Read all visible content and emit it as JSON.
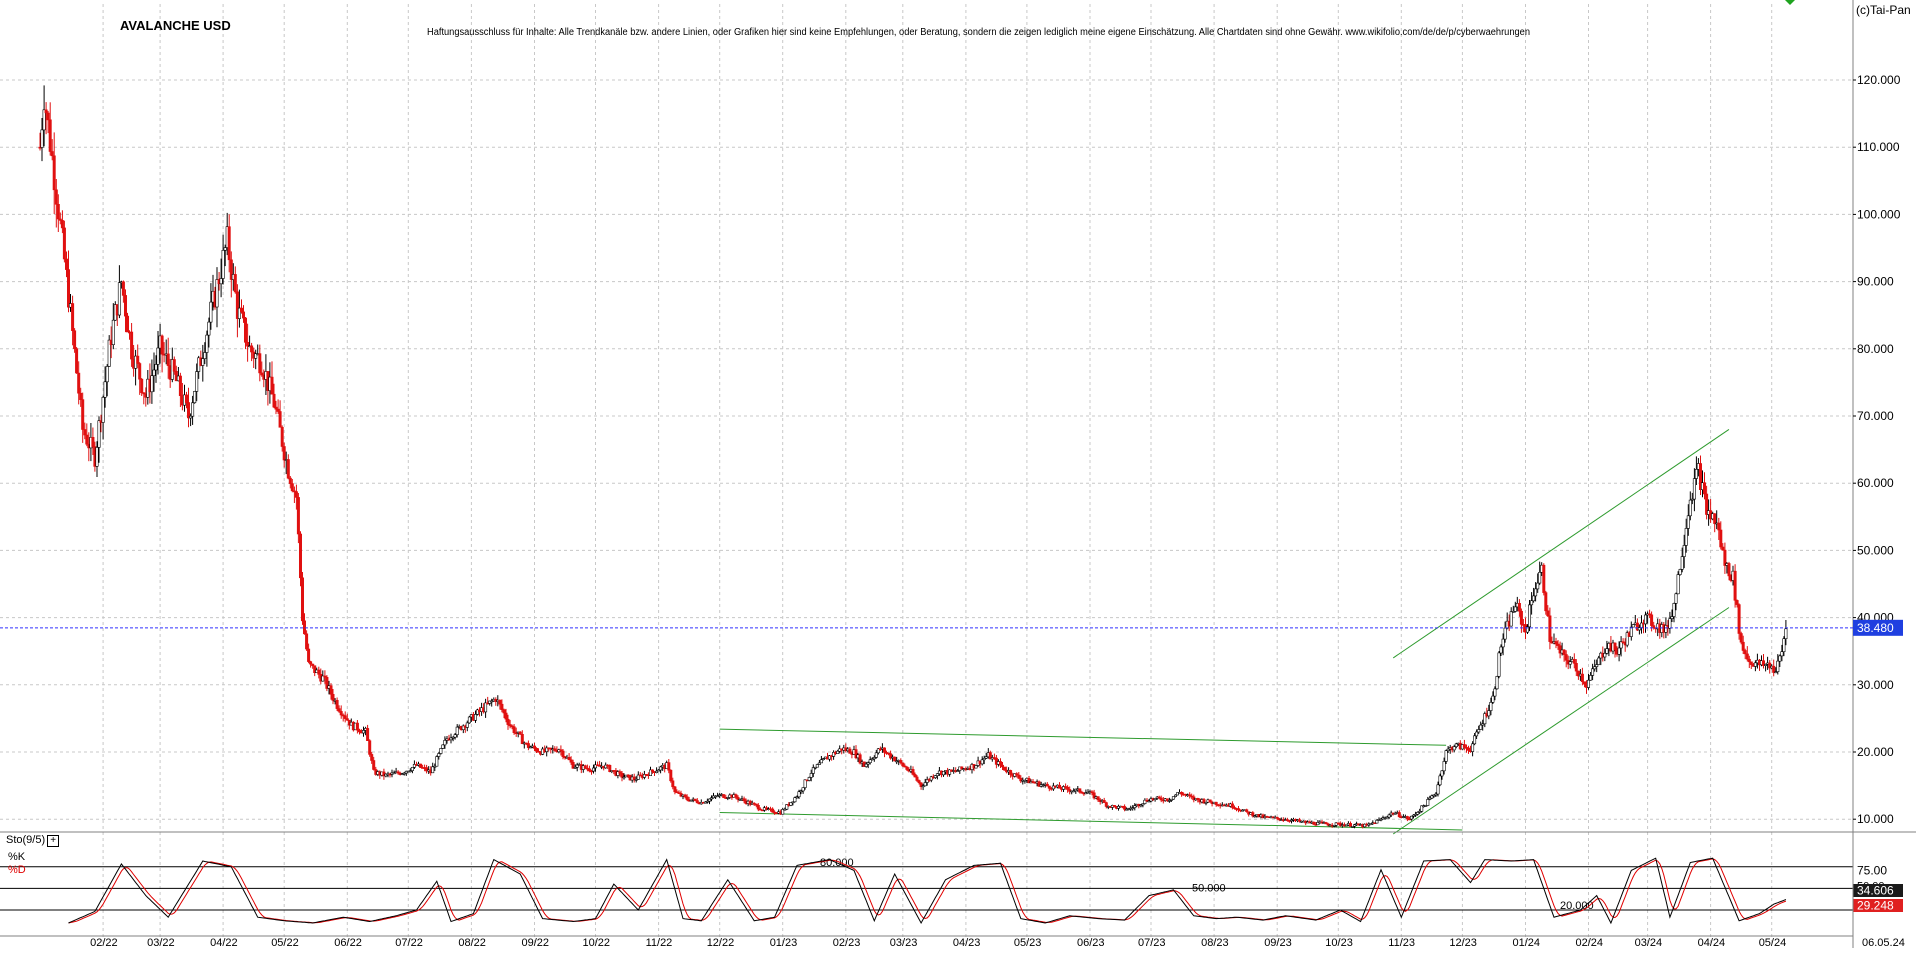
{
  "chart_data": {
    "type": "candlestick",
    "title": "AVALANCHE USD",
    "disclaimer": "Haftungsausschluss für Inhalte: Alle Trendkanäle bzw. andere Linien, oder Grafiken hier sind keine Empfehlungen, oder Beratung, sondern die zeigen lediglich meine eigene Einschätzung. Alle Chartdaten sind ohne Gewähr.  www.wikifolio.com/de/de/p/cyberwaehrungen",
    "copyright": "(c)Tai-Pan",
    "last_price": "38.480",
    "last_price_value": 38.48,
    "ylim": [
      0,
      122
    ],
    "y_ticks": [
      {
        "value": 10,
        "label": "10.000"
      },
      {
        "value": 20,
        "label": "20.000"
      },
      {
        "value": 30,
        "label": "30.000"
      },
      {
        "value": 40,
        "label": "40.000"
      },
      {
        "value": 50,
        "label": "50.000"
      },
      {
        "value": 60,
        "label": "60.000"
      },
      {
        "value": 70,
        "label": "70.000"
      },
      {
        "value": 80,
        "label": "80.000"
      },
      {
        "value": 90,
        "label": "90.000"
      },
      {
        "value": 100,
        "label": "100.000"
      },
      {
        "value": 110,
        "label": "110.000"
      },
      {
        "value": 120,
        "label": "120.000"
      }
    ],
    "x_range": [
      "2022-01-01",
      "2024-05-10"
    ],
    "x_ticks": [
      {
        "date": "2022-02-01",
        "label": "02/22"
      },
      {
        "date": "2022-03-01",
        "label": "03/22"
      },
      {
        "date": "2022-04-01",
        "label": "04/22"
      },
      {
        "date": "2022-05-01",
        "label": "05/22"
      },
      {
        "date": "2022-06-01",
        "label": "06/22"
      },
      {
        "date": "2022-07-01",
        "label": "07/22"
      },
      {
        "date": "2022-08-01",
        "label": "08/22"
      },
      {
        "date": "2022-09-01",
        "label": "09/22"
      },
      {
        "date": "2022-10-01",
        "label": "10/22"
      },
      {
        "date": "2022-11-01",
        "label": "11/22"
      },
      {
        "date": "2022-12-01",
        "label": "12/22"
      },
      {
        "date": "2023-01-01",
        "label": "01/23"
      },
      {
        "date": "2023-02-01",
        "label": "02/23"
      },
      {
        "date": "2023-03-01",
        "label": "03/23"
      },
      {
        "date": "2023-04-01",
        "label": "04/23"
      },
      {
        "date": "2023-05-01",
        "label": "05/23"
      },
      {
        "date": "2023-06-01",
        "label": "06/23"
      },
      {
        "date": "2023-07-01",
        "label": "07/23"
      },
      {
        "date": "2023-08-01",
        "label": "08/23"
      },
      {
        "date": "2023-09-01",
        "label": "09/23"
      },
      {
        "date": "2023-10-01",
        "label": "10/23"
      },
      {
        "date": "2023-11-01",
        "label": "11/23"
      },
      {
        "date": "2023-12-01",
        "label": "12/23"
      },
      {
        "date": "2024-01-01",
        "label": "01/24"
      },
      {
        "date": "2024-02-01",
        "label": "02/24"
      },
      {
        "date": "2024-03-01",
        "label": "03/24"
      },
      {
        "date": "2024-04-01",
        "label": "04/24"
      },
      {
        "date": "2024-05-01",
        "label": "05/24"
      }
    ],
    "x_last_label": "06.05.24",
    "price_path": [
      [
        "2022-01-01",
        110
      ],
      [
        "2022-01-03",
        118
      ],
      [
        "2022-01-08",
        106
      ],
      [
        "2022-01-15",
        88
      ],
      [
        "2022-01-22",
        68
      ],
      [
        "2022-01-28",
        64
      ],
      [
        "2022-02-05",
        82
      ],
      [
        "2022-02-10",
        90
      ],
      [
        "2022-02-15",
        80
      ],
      [
        "2022-02-22",
        73
      ],
      [
        "2022-03-01",
        80
      ],
      [
        "2022-03-08",
        76
      ],
      [
        "2022-03-15",
        70
      ],
      [
        "2022-03-22",
        80
      ],
      [
        "2022-03-28",
        88
      ],
      [
        "2022-04-03",
        96
      ],
      [
        "2022-04-08",
        86
      ],
      [
        "2022-04-14",
        80
      ],
      [
        "2022-04-20",
        78
      ],
      [
        "2022-04-26",
        72
      ],
      [
        "2022-05-03",
        62
      ],
      [
        "2022-05-07",
        58
      ],
      [
        "2022-05-10",
        40
      ],
      [
        "2022-05-13",
        33
      ],
      [
        "2022-05-20",
        31
      ],
      [
        "2022-05-27",
        27
      ],
      [
        "2022-06-03",
        24
      ],
      [
        "2022-06-10",
        23
      ],
      [
        "2022-06-14",
        17
      ],
      [
        "2022-06-20",
        16.5
      ],
      [
        "2022-06-28",
        17
      ],
      [
        "2022-07-05",
        18
      ],
      [
        "2022-07-12",
        17
      ],
      [
        "2022-07-20",
        22
      ],
      [
        "2022-07-28",
        24
      ],
      [
        "2022-08-05",
        26
      ],
      [
        "2022-08-13",
        28
      ],
      [
        "2022-08-20",
        24
      ],
      [
        "2022-08-28",
        21
      ],
      [
        "2022-09-05",
        20
      ],
      [
        "2022-09-13",
        20.5
      ],
      [
        "2022-09-20",
        18
      ],
      [
        "2022-09-28",
        17.5
      ],
      [
        "2022-10-05",
        18
      ],
      [
        "2022-10-13",
        16.5
      ],
      [
        "2022-10-20",
        16
      ],
      [
        "2022-10-28",
        17
      ],
      [
        "2022-11-05",
        18
      ],
      [
        "2022-11-09",
        14
      ],
      [
        "2022-11-15",
        13
      ],
      [
        "2022-11-22",
        12.5
      ],
      [
        "2022-11-30",
        13.5
      ],
      [
        "2022-12-07",
        13.5
      ],
      [
        "2022-12-15",
        12.5
      ],
      [
        "2022-12-22",
        11.5
      ],
      [
        "2022-12-31",
        11
      ],
      [
        "2023-01-08",
        13.5
      ],
      [
        "2023-01-15",
        17
      ],
      [
        "2023-01-22",
        19
      ],
      [
        "2023-01-30",
        20.5
      ],
      [
        "2023-02-05",
        20
      ],
      [
        "2023-02-10",
        18
      ],
      [
        "2023-02-18",
        20.5
      ],
      [
        "2023-02-25",
        19
      ],
      [
        "2023-03-05",
        17
      ],
      [
        "2023-03-10",
        15
      ],
      [
        "2023-03-18",
        17
      ],
      [
        "2023-03-25",
        17
      ],
      [
        "2023-04-05",
        18
      ],
      [
        "2023-04-12",
        19.5
      ],
      [
        "2023-04-20",
        17.5
      ],
      [
        "2023-04-28",
        16
      ],
      [
        "2023-05-10",
        15
      ],
      [
        "2023-05-20",
        14.5
      ],
      [
        "2023-05-31",
        14
      ],
      [
        "2023-06-10",
        12
      ],
      [
        "2023-06-20",
        11.5
      ],
      [
        "2023-06-30",
        13
      ],
      [
        "2023-07-10",
        13
      ],
      [
        "2023-07-15",
        14
      ],
      [
        "2023-07-22",
        13
      ],
      [
        "2023-07-31",
        12.5
      ],
      [
        "2023-08-10",
        12
      ],
      [
        "2023-08-17",
        11
      ],
      [
        "2023-08-25",
        10.3
      ],
      [
        "2023-09-05",
        10
      ],
      [
        "2023-09-15",
        9.5
      ],
      [
        "2023-09-25",
        9.3
      ],
      [
        "2023-10-05",
        9.2
      ],
      [
        "2023-10-15",
        9
      ],
      [
        "2023-10-22",
        10
      ],
      [
        "2023-10-28",
        11
      ],
      [
        "2023-11-05",
        10
      ],
      [
        "2023-11-12",
        12
      ],
      [
        "2023-11-18",
        14
      ],
      [
        "2023-11-23",
        20
      ],
      [
        "2023-11-27",
        21
      ],
      [
        "2023-12-05",
        20.5
      ],
      [
        "2023-12-10",
        24
      ],
      [
        "2023-12-16",
        28
      ],
      [
        "2023-12-20",
        36
      ],
      [
        "2023-12-27",
        42
      ],
      [
        "2024-01-01",
        38
      ],
      [
        "2024-01-05",
        44
      ],
      [
        "2024-01-09",
        47
      ],
      [
        "2024-01-13",
        37
      ],
      [
        "2024-01-20",
        34
      ],
      [
        "2024-01-25",
        33
      ],
      [
        "2024-01-31",
        30
      ],
      [
        "2024-02-05",
        33
      ],
      [
        "2024-02-10",
        36
      ],
      [
        "2024-02-15",
        35
      ],
      [
        "2024-02-22",
        38
      ],
      [
        "2024-02-28",
        40
      ],
      [
        "2024-03-05",
        39
      ],
      [
        "2024-03-10",
        38
      ],
      [
        "2024-03-14",
        42
      ],
      [
        "2024-03-18",
        50
      ],
      [
        "2024-03-22",
        58
      ],
      [
        "2024-03-26",
        62
      ],
      [
        "2024-03-30",
        56
      ],
      [
        "2024-04-04",
        54
      ],
      [
        "2024-04-08",
        48
      ],
      [
        "2024-04-12",
        46
      ],
      [
        "2024-04-16",
        36
      ],
      [
        "2024-04-20",
        33.5
      ],
      [
        "2024-04-25",
        33
      ],
      [
        "2024-04-30",
        33
      ],
      [
        "2024-05-03",
        32
      ],
      [
        "2024-05-06",
        35
      ],
      [
        "2024-05-08",
        38.5
      ]
    ],
    "trend_lines": [
      {
        "from": [
          "2022-12-01",
          23.4
        ],
        "to": [
          "2023-11-23",
          21.0
        ]
      },
      {
        "from": [
          "2022-12-01",
          11.0
        ],
        "to": [
          "2023-12-01",
          8.4
        ]
      },
      {
        "from": [
          "2023-10-28",
          7.8
        ],
        "to": [
          "2024-04-10",
          41.5
        ]
      },
      {
        "from": [
          "2023-10-28",
          34.0
        ],
        "to": [
          "2024-04-10",
          68.0
        ]
      }
    ],
    "indicator": {
      "name": "Sto(9/5)",
      "series": [
        {
          "name": "%K",
          "color": "#000000"
        },
        {
          "name": "%D",
          "color": "#e00000"
        }
      ],
      "levels": [
        {
          "value": 80,
          "label": "80.000"
        },
        {
          "value": 50,
          "label": "50.000"
        },
        {
          "value": 20,
          "label": "20.000"
        }
      ],
      "y_ticks": [
        "75.00",
        "50.00"
      ],
      "k_value": "34.606",
      "d_value": "29.248",
      "k_path": [
        [
          "2022-01-15",
          2
        ],
        [
          "2022-01-28",
          18
        ],
        [
          "2022-02-10",
          84
        ],
        [
          "2022-02-22",
          40
        ],
        [
          "2022-03-05",
          10
        ],
        [
          "2022-03-22",
          88
        ],
        [
          "2022-04-05",
          80
        ],
        [
          "2022-04-18",
          10
        ],
        [
          "2022-05-01",
          5
        ],
        [
          "2022-05-15",
          2
        ],
        [
          "2022-05-30",
          10
        ],
        [
          "2022-06-12",
          4
        ],
        [
          "2022-06-25",
          12
        ],
        [
          "2022-07-05",
          20
        ],
        [
          "2022-07-15",
          60
        ],
        [
          "2022-07-22",
          4
        ],
        [
          "2022-08-02",
          15
        ],
        [
          "2022-08-12",
          90
        ],
        [
          "2022-08-25",
          70
        ],
        [
          "2022-09-05",
          8
        ],
        [
          "2022-09-20",
          4
        ],
        [
          "2022-10-01",
          8
        ],
        [
          "2022-10-10",
          56
        ],
        [
          "2022-10-22",
          20
        ],
        [
          "2022-11-05",
          90
        ],
        [
          "2022-11-13",
          8
        ],
        [
          "2022-11-22",
          5
        ],
        [
          "2022-12-05",
          62
        ],
        [
          "2022-12-18",
          5
        ],
        [
          "2022-12-28",
          10
        ],
        [
          "2023-01-08",
          82
        ],
        [
          "2023-01-24",
          90
        ],
        [
          "2023-02-05",
          75
        ],
        [
          "2023-02-15",
          5
        ],
        [
          "2023-02-25",
          70
        ],
        [
          "2023-03-10",
          2
        ],
        [
          "2023-03-22",
          62
        ],
        [
          "2023-04-05",
          82
        ],
        [
          "2023-04-18",
          85
        ],
        [
          "2023-04-28",
          8
        ],
        [
          "2023-05-10",
          2
        ],
        [
          "2023-05-22",
          12
        ],
        [
          "2023-06-05",
          8
        ],
        [
          "2023-06-18",
          6
        ],
        [
          "2023-06-30",
          40
        ],
        [
          "2023-07-12",
          48
        ],
        [
          "2023-07-22",
          12
        ],
        [
          "2023-08-02",
          8
        ],
        [
          "2023-08-12",
          10
        ],
        [
          "2023-08-25",
          6
        ],
        [
          "2023-09-05",
          12
        ],
        [
          "2023-09-20",
          6
        ],
        [
          "2023-10-02",
          20
        ],
        [
          "2023-10-12",
          4
        ],
        [
          "2023-10-22",
          76
        ],
        [
          "2023-11-01",
          10
        ],
        [
          "2023-11-12",
          88
        ],
        [
          "2023-11-25",
          90
        ],
        [
          "2023-12-05",
          58
        ],
        [
          "2023-12-12",
          90
        ],
        [
          "2023-12-25",
          88
        ],
        [
          "2024-01-05",
          90
        ],
        [
          "2024-01-15",
          10
        ],
        [
          "2024-01-28",
          20
        ],
        [
          "2024-02-05",
          40
        ],
        [
          "2024-02-12",
          2
        ],
        [
          "2024-02-22",
          75
        ],
        [
          "2024-03-05",
          92
        ],
        [
          "2024-03-12",
          10
        ],
        [
          "2024-03-22",
          86
        ],
        [
          "2024-04-02",
          92
        ],
        [
          "2024-04-15",
          5
        ],
        [
          "2024-04-25",
          15
        ],
        [
          "2024-05-02",
          28
        ],
        [
          "2024-05-08",
          34.6
        ]
      ]
    }
  }
}
